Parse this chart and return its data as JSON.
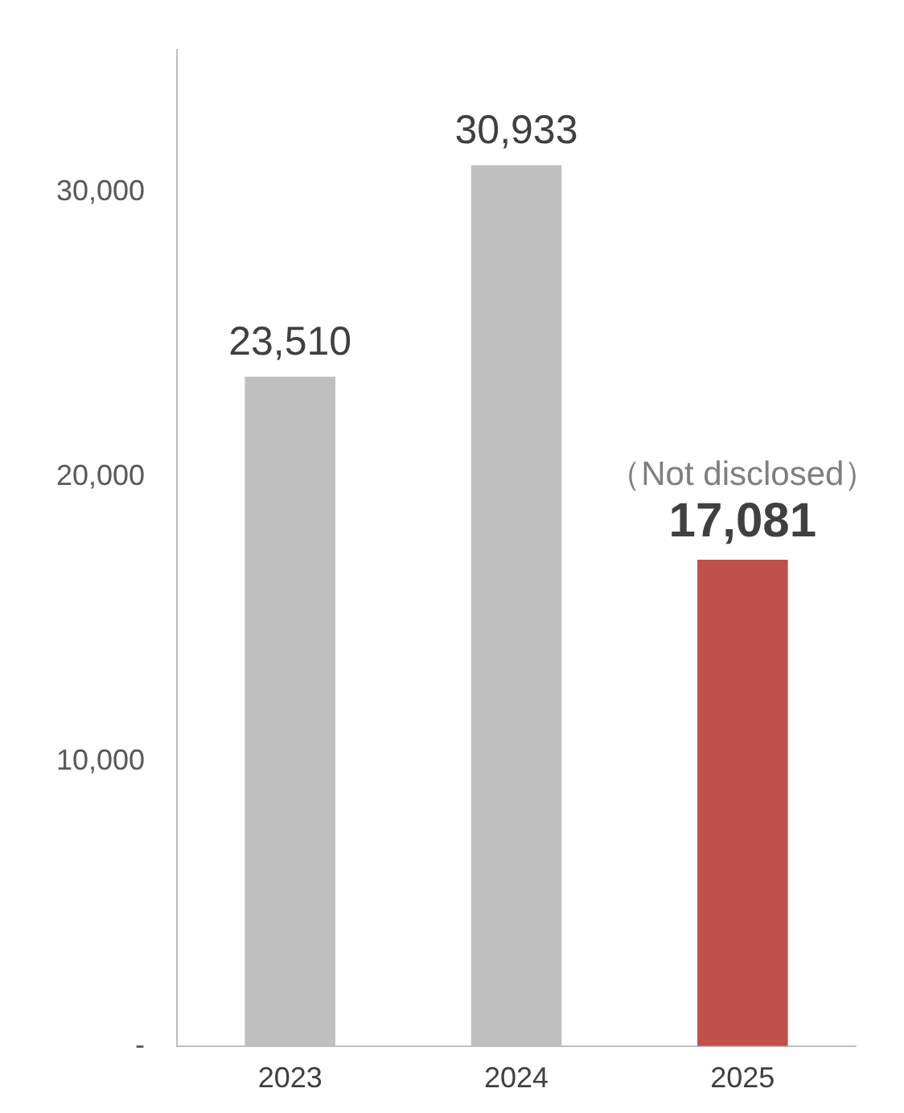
{
  "chart_data": {
    "type": "bar",
    "categories": [
      "2023",
      "2024",
      "2025"
    ],
    "values": [
      23510,
      30933,
      17081
    ],
    "colors": [
      "#bfbfbf",
      "#bfbfbf",
      "#c0504d"
    ],
    "ylim": [
      0,
      35000
    ],
    "yticks": [
      {
        "value": 0,
        "label": "-"
      },
      {
        "value": 10000,
        "label": "10,000"
      },
      {
        "value": 20000,
        "label": "20,000"
      },
      {
        "value": 30000,
        "label": "30,000"
      }
    ],
    "value_labels": [
      "23,510",
      "30,933",
      "17,081"
    ],
    "annotations": [
      {
        "text": "（Not disclosed）",
        "x": "2025",
        "y": 17081
      }
    ],
    "grid": false,
    "legend": false
  }
}
